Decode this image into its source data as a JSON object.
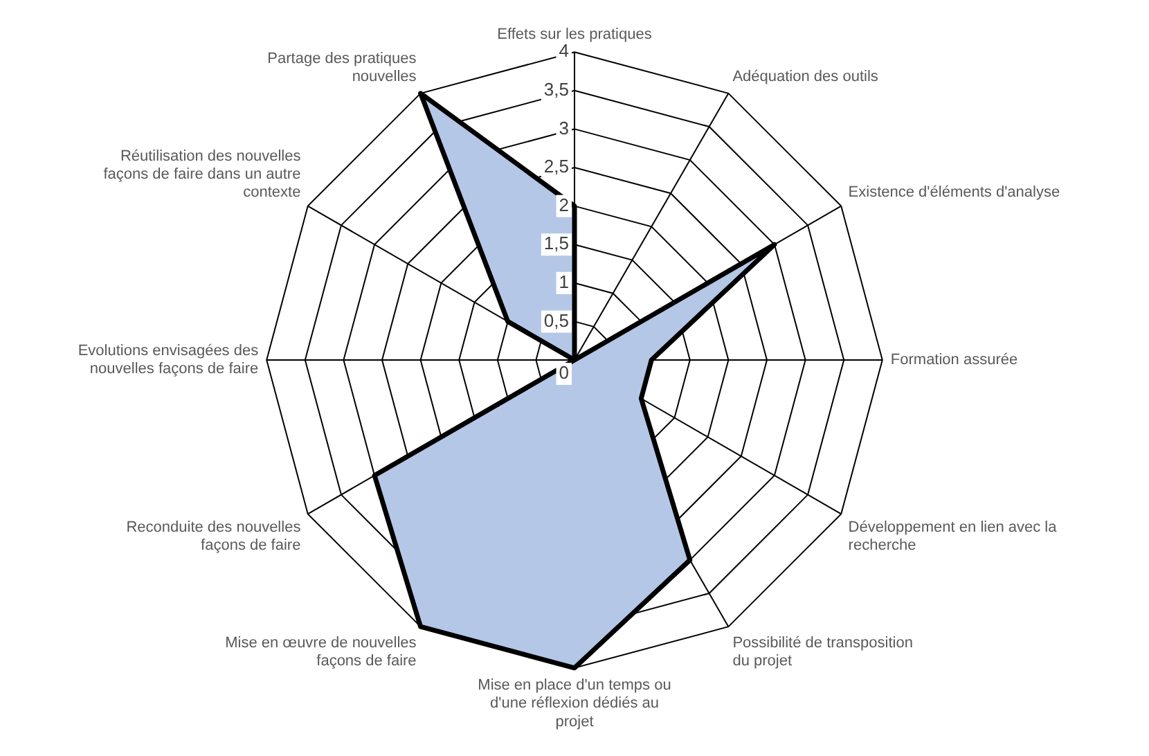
{
  "chart_data": {
    "type": "radar",
    "categories": [
      "Effets sur les pratiques",
      "Adéquation des outils",
      "Existence d'éléments d'analyse",
      "Formation assurée",
      "Développement en lien avec la recherche",
      "Possibilité de transposition du projet",
      "Mise en place d'un temps ou d'une réflexion dédiés au projet",
      "Mise en œuvre de nouvelles façons de faire",
      "Reconduite des nouvelles façons de faire",
      "Evolutions envisagées des nouvelles façons de faire",
      "Réutilisation des nouvelles façons de faire dans un autre contexte",
      "Partage des pratiques nouvelles"
    ],
    "series": [
      {
        "color": "#b4c7e7",
        "values": [
          2,
          0,
          3,
          1,
          1,
          3,
          4,
          4,
          3,
          0,
          1,
          4
        ]
      }
    ],
    "ylim": [
      0,
      4
    ],
    "yticks": [
      0,
      {
        "value": 0.5,
        "label": "0,5"
      },
      1,
      {
        "value": 1.5,
        "label": "1,5"
      },
      2,
      {
        "value": 2.5,
        "label": "2,5"
      },
      3,
      {
        "value": 3.5,
        "label": "3,5"
      },
      4
    ],
    "grid": true,
    "legend": false,
    "marker": "none"
  }
}
